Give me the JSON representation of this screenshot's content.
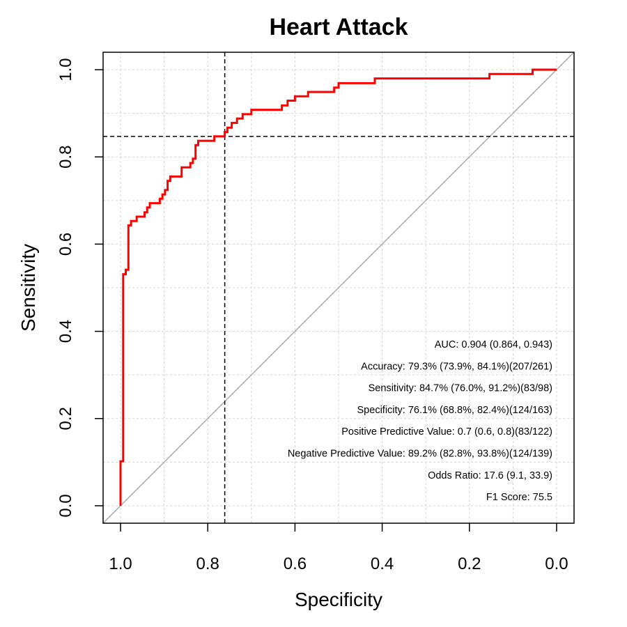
{
  "chart_data": {
    "type": "line",
    "title": "Heart Attack",
    "xlabel": "Specificity",
    "ylabel": "Sensitivity",
    "x_reversed": true,
    "xlim": [
      1.04,
      -0.04
    ],
    "ylim": [
      -0.04,
      1.04
    ],
    "xticks": [
      1.0,
      0.8,
      0.6,
      0.4,
      0.2,
      0.0
    ],
    "xtick_labels": [
      "1.0",
      "0.8",
      "0.6",
      "0.4",
      "0.2",
      "0.0"
    ],
    "yticks": [
      0.0,
      0.2,
      0.4,
      0.6,
      0.8,
      1.0
    ],
    "ytick_labels": [
      "0.0",
      "0.2",
      "0.4",
      "0.6",
      "0.8",
      "1.0"
    ],
    "grid": true,
    "cutoff": {
      "specificity": 0.761,
      "sensitivity": 0.847
    },
    "series": [
      {
        "color": "#ff0000",
        "points": [
          [
            1.0,
            0.0
          ],
          [
            1.0,
            0.102
          ],
          [
            0.994,
            0.102
          ],
          [
            0.994,
            0.531
          ],
          [
            0.988,
            0.531
          ],
          [
            0.988,
            0.541
          ],
          [
            0.982,
            0.541
          ],
          [
            0.982,
            0.643
          ],
          [
            0.976,
            0.643
          ],
          [
            0.976,
            0.653
          ],
          [
            0.963,
            0.653
          ],
          [
            0.963,
            0.663
          ],
          [
            0.945,
            0.663
          ],
          [
            0.945,
            0.673
          ],
          [
            0.939,
            0.673
          ],
          [
            0.939,
            0.684
          ],
          [
            0.933,
            0.684
          ],
          [
            0.933,
            0.694
          ],
          [
            0.91,
            0.694
          ],
          [
            0.91,
            0.704
          ],
          [
            0.904,
            0.704
          ],
          [
            0.904,
            0.714
          ],
          [
            0.898,
            0.714
          ],
          [
            0.898,
            0.724
          ],
          [
            0.892,
            0.724
          ],
          [
            0.892,
            0.745
          ],
          [
            0.886,
            0.745
          ],
          [
            0.886,
            0.755
          ],
          [
            0.86,
            0.755
          ],
          [
            0.86,
            0.776
          ],
          [
            0.84,
            0.776
          ],
          [
            0.84,
            0.786
          ],
          [
            0.834,
            0.786
          ],
          [
            0.834,
            0.796
          ],
          [
            0.828,
            0.796
          ],
          [
            0.828,
            0.827
          ],
          [
            0.822,
            0.827
          ],
          [
            0.822,
            0.837
          ],
          [
            0.785,
            0.837
          ],
          [
            0.785,
            0.847
          ],
          [
            0.761,
            0.847
          ],
          [
            0.761,
            0.857
          ],
          [
            0.755,
            0.857
          ],
          [
            0.755,
            0.867
          ],
          [
            0.745,
            0.867
          ],
          [
            0.745,
            0.878
          ],
          [
            0.733,
            0.878
          ],
          [
            0.733,
            0.888
          ],
          [
            0.72,
            0.888
          ],
          [
            0.72,
            0.898
          ],
          [
            0.7,
            0.898
          ],
          [
            0.7,
            0.908
          ],
          [
            0.63,
            0.908
          ],
          [
            0.63,
            0.918
          ],
          [
            0.617,
            0.918
          ],
          [
            0.617,
            0.929
          ],
          [
            0.6,
            0.929
          ],
          [
            0.6,
            0.939
          ],
          [
            0.57,
            0.939
          ],
          [
            0.57,
            0.949
          ],
          [
            0.51,
            0.949
          ],
          [
            0.51,
            0.959
          ],
          [
            0.5,
            0.959
          ],
          [
            0.5,
            0.969
          ],
          [
            0.417,
            0.969
          ],
          [
            0.417,
            0.98
          ],
          [
            0.154,
            0.98
          ],
          [
            0.154,
            0.99
          ],
          [
            0.055,
            0.99
          ],
          [
            0.055,
            1.0
          ],
          [
            0.0,
            1.0
          ]
        ]
      }
    ],
    "stats": [
      {
        "label": "AUC:",
        "value": "0.904 (0.864, 0.943)"
      },
      {
        "label": "Accuracy:",
        "value": "79.3% (73.9%, 84.1%)(207/261)"
      },
      {
        "label": "Sensitivity:",
        "value": "84.7% (76.0%, 91.2%)(83/98)"
      },
      {
        "label": "Specificity:",
        "value": "76.1% (68.8%, 82.4%)(124/163)"
      },
      {
        "label": "Positive Predictive Value:",
        "value": "0.7 (0.6, 0.8)(83/122)"
      },
      {
        "label": "Negative Predictive Value:",
        "value": "89.2% (82.8%, 93.8%)(124/139)"
      },
      {
        "label": "Odds Ratio:",
        "value": "17.6 (9.1, 33.9)"
      },
      {
        "label": "F1 Score:",
        "value": "75.5"
      }
    ]
  }
}
